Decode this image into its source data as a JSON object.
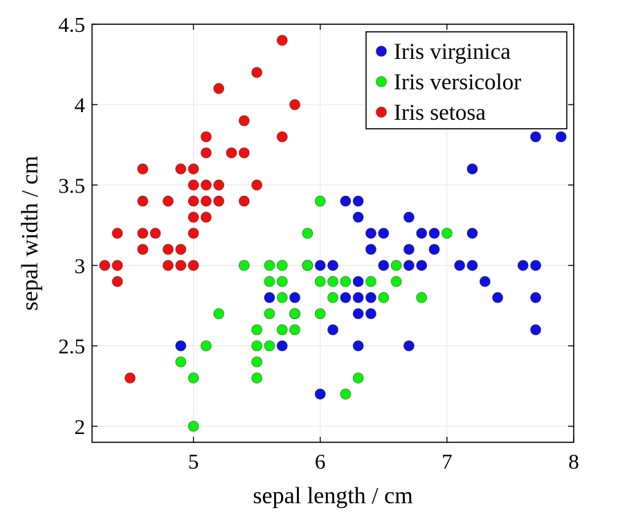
{
  "chart_data": {
    "type": "scatter",
    "title": "",
    "xlabel": "sepal length / cm",
    "ylabel": "sepal width / cm",
    "xlim": [
      4.2,
      8.0
    ],
    "ylim": [
      1.9,
      4.5
    ],
    "xticks": [
      5,
      6,
      7,
      8
    ],
    "yticks": [
      2,
      2.5,
      3,
      3.5,
      4,
      4.5
    ],
    "grid": true,
    "legend_position": "top-right",
    "series": [
      {
        "name": "Iris virginica",
        "color": "#1010e0",
        "points": [
          [
            4.9,
            2.5
          ],
          [
            5.6,
            2.8
          ],
          [
            5.7,
            2.5
          ],
          [
            5.8,
            2.8
          ],
          [
            5.8,
            2.7
          ],
          [
            5.9,
            3.0
          ],
          [
            6.0,
            3.0
          ],
          [
            6.0,
            2.2
          ],
          [
            6.1,
            3.0
          ],
          [
            6.1,
            2.6
          ],
          [
            6.2,
            3.4
          ],
          [
            6.2,
            2.8
          ],
          [
            6.3,
            3.4
          ],
          [
            6.3,
            3.3
          ],
          [
            6.3,
            2.9
          ],
          [
            6.3,
            2.8
          ],
          [
            6.3,
            2.7
          ],
          [
            6.3,
            2.5
          ],
          [
            6.4,
            3.2
          ],
          [
            6.4,
            3.1
          ],
          [
            6.4,
            2.8
          ],
          [
            6.4,
            2.7
          ],
          [
            6.5,
            3.2
          ],
          [
            6.5,
            3.0
          ],
          [
            6.7,
            3.3
          ],
          [
            6.7,
            3.1
          ],
          [
            6.7,
            3.0
          ],
          [
            6.7,
            2.5
          ],
          [
            6.8,
            3.2
          ],
          [
            6.8,
            3.0
          ],
          [
            6.9,
            3.2
          ],
          [
            6.9,
            3.1
          ],
          [
            7.1,
            3.0
          ],
          [
            7.2,
            3.6
          ],
          [
            7.2,
            3.2
          ],
          [
            7.2,
            3.0
          ],
          [
            7.3,
            2.9
          ],
          [
            7.4,
            2.8
          ],
          [
            7.6,
            3.0
          ],
          [
            7.7,
            3.8
          ],
          [
            7.7,
            3.0
          ],
          [
            7.7,
            2.8
          ],
          [
            7.7,
            2.6
          ],
          [
            7.9,
            3.8
          ]
        ]
      },
      {
        "name": "Iris versicolor",
        "color": "#10ee10",
        "points": [
          [
            4.9,
            2.4
          ],
          [
            5.0,
            2.3
          ],
          [
            5.0,
            2.0
          ],
          [
            5.1,
            2.5
          ],
          [
            5.2,
            2.7
          ],
          [
            5.4,
            3.0
          ],
          [
            5.5,
            2.6
          ],
          [
            5.5,
            2.5
          ],
          [
            5.5,
            2.4
          ],
          [
            5.5,
            2.3
          ],
          [
            5.6,
            3.0
          ],
          [
            5.6,
            2.9
          ],
          [
            5.6,
            2.7
          ],
          [
            5.6,
            2.5
          ],
          [
            5.7,
            3.0
          ],
          [
            5.7,
            2.9
          ],
          [
            5.7,
            2.8
          ],
          [
            5.7,
            2.6
          ],
          [
            5.8,
            2.7
          ],
          [
            5.8,
            2.6
          ],
          [
            5.9,
            3.2
          ],
          [
            5.9,
            3.0
          ],
          [
            6.0,
            3.4
          ],
          [
            6.0,
            2.9
          ],
          [
            6.0,
            2.7
          ],
          [
            6.1,
            2.9
          ],
          [
            6.1,
            2.8
          ],
          [
            6.2,
            2.9
          ],
          [
            6.2,
            2.2
          ],
          [
            6.3,
            2.3
          ],
          [
            6.4,
            2.9
          ],
          [
            6.5,
            2.8
          ],
          [
            6.6,
            3.0
          ],
          [
            6.6,
            2.9
          ],
          [
            6.8,
            2.8
          ],
          [
            7.0,
            3.2
          ]
        ]
      },
      {
        "name": "Iris setosa",
        "color": "#ee1010",
        "points": [
          [
            4.3,
            3.0
          ],
          [
            4.4,
            3.2
          ],
          [
            4.4,
            3.0
          ],
          [
            4.4,
            2.9
          ],
          [
            4.5,
            2.3
          ],
          [
            4.6,
            3.6
          ],
          [
            4.6,
            3.4
          ],
          [
            4.6,
            3.2
          ],
          [
            4.6,
            3.1
          ],
          [
            4.7,
            3.2
          ],
          [
            4.8,
            3.4
          ],
          [
            4.8,
            3.1
          ],
          [
            4.8,
            3.0
          ],
          [
            4.9,
            3.6
          ],
          [
            4.9,
            3.1
          ],
          [
            4.9,
            3.0
          ],
          [
            5.0,
            3.6
          ],
          [
            5.0,
            3.5
          ],
          [
            5.0,
            3.4
          ],
          [
            5.0,
            3.3
          ],
          [
            5.0,
            3.2
          ],
          [
            5.0,
            3.0
          ],
          [
            5.1,
            3.8
          ],
          [
            5.1,
            3.7
          ],
          [
            5.1,
            3.5
          ],
          [
            5.1,
            3.4
          ],
          [
            5.1,
            3.3
          ],
          [
            5.2,
            4.1
          ],
          [
            5.2,
            3.5
          ],
          [
            5.2,
            3.4
          ],
          [
            5.3,
            3.7
          ],
          [
            5.4,
            3.9
          ],
          [
            5.4,
            3.7
          ],
          [
            5.4,
            3.4
          ],
          [
            5.5,
            4.2
          ],
          [
            5.5,
            3.5
          ],
          [
            5.7,
            4.4
          ],
          [
            5.7,
            3.8
          ],
          [
            5.8,
            4.0
          ]
        ]
      }
    ]
  }
}
